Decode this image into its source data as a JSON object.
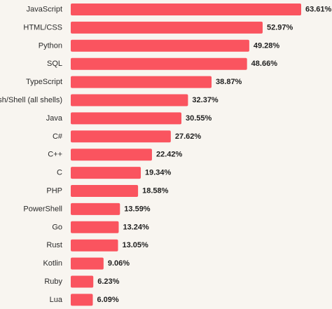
{
  "chart_data": {
    "type": "bar",
    "orientation": "horizontal",
    "categories": [
      "JavaScript",
      "HTML/CSS",
      "Python",
      "SQL",
      "TypeScript",
      "Bash/Shell (all shells)",
      "Java",
      "C#",
      "C++",
      "C",
      "PHP",
      "PowerShell",
      "Go",
      "Rust",
      "Kotlin",
      "Ruby",
      "Lua"
    ],
    "values": [
      63.61,
      52.97,
      49.28,
      48.66,
      38.87,
      32.37,
      30.55,
      27.62,
      22.42,
      19.34,
      18.58,
      13.59,
      13.24,
      13.05,
      9.06,
      6.23,
      6.09
    ],
    "value_labels": [
      "63.61%",
      "52.97%",
      "49.28%",
      "48.66%",
      "38.87%",
      "32.37%",
      "30.55%",
      "27.62%",
      "22.42%",
      "19.34%",
      "18.58%",
      "13.59%",
      "13.24%",
      "13.05%",
      "9.06%",
      "6.23%",
      "6.09%"
    ],
    "xlim": [
      0,
      63.61
    ],
    "grid": false,
    "colors": {
      "bar": "#fa545f",
      "background": "#f8f5f0",
      "label": "#2b2b2b",
      "value": "#1f1f1f"
    }
  }
}
